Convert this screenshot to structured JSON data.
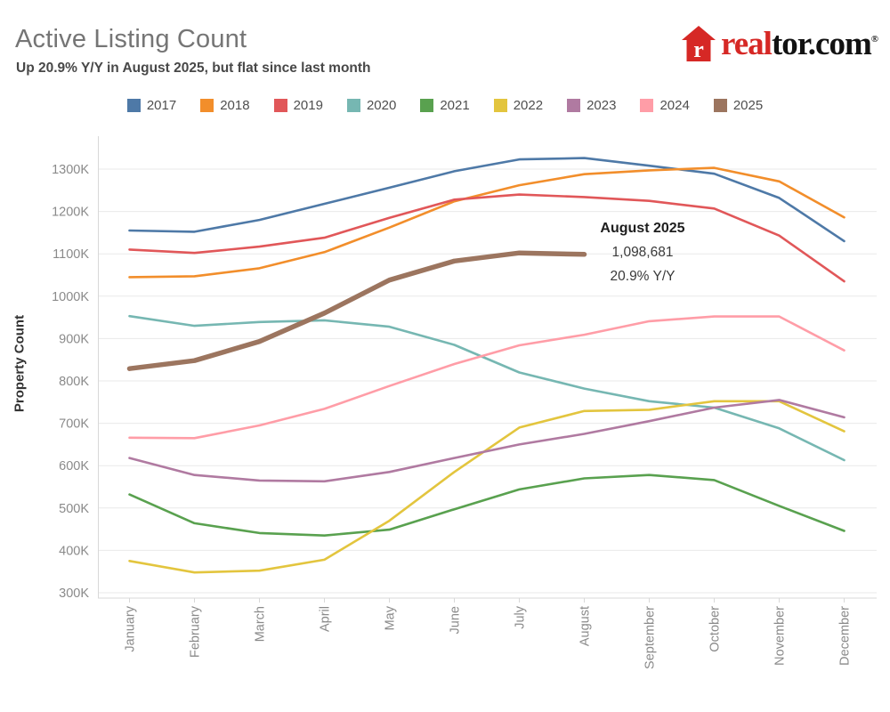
{
  "header": {
    "title": "Active Listing Count",
    "subtitle": "Up 20.9% Y/Y in August 2025, but flat since last month"
  },
  "logo": {
    "brand_red": "real",
    "brand_black": "tor.com",
    "registered": "®",
    "accent_color": "#d62825"
  },
  "chart_data": {
    "type": "line",
    "title": "Active Listing Count",
    "xlabel": "",
    "ylabel": "Property Count",
    "x": [
      "January",
      "February",
      "March",
      "April",
      "May",
      "June",
      "July",
      "August",
      "September",
      "October",
      "November",
      "December"
    ],
    "unit": "K",
    "ylim": [
      300,
      1300
    ],
    "ytick_step": 100,
    "ytick_labels": [
      "300K",
      "400K",
      "500K",
      "600K",
      "700K",
      "800K",
      "900K",
      "1000K",
      "1100K",
      "1200K",
      "1300K"
    ],
    "grid": true,
    "legend_position": "top",
    "series": [
      {
        "name": "2017",
        "color": "#4e79a7",
        "width": 2.6,
        "values": [
          1155,
          1152,
          1180,
          1218,
          1256,
          1295,
          1323,
          1326,
          1308,
          1289,
          1232,
          1130
        ]
      },
      {
        "name": "2018",
        "color": "#f28e2b",
        "width": 2.6,
        "values": [
          1045,
          1047,
          1066,
          1104,
          1162,
          1224,
          1262,
          1288,
          1297,
          1303,
          1271,
          1186
        ]
      },
      {
        "name": "2019",
        "color": "#e15759",
        "width": 2.6,
        "values": [
          1110,
          1102,
          1117,
          1138,
          1185,
          1228,
          1240,
          1234,
          1225,
          1207,
          1143,
          1035
        ]
      },
      {
        "name": "2020",
        "color": "#76b7b2",
        "width": 2.6,
        "values": [
          953,
          930,
          939,
          943,
          928,
          885,
          820,
          782,
          752,
          737,
          688,
          613
        ]
      },
      {
        "name": "2021",
        "color": "#59a14f",
        "width": 2.6,
        "values": [
          532,
          464,
          441,
          435,
          449,
          497,
          544,
          570,
          578,
          566,
          505,
          446
        ]
      },
      {
        "name": "2022",
        "color": "#e3c53e",
        "width": 2.6,
        "values": [
          375,
          348,
          352,
          378,
          470,
          585,
          690,
          729,
          732,
          752,
          752,
          681
        ]
      },
      {
        "name": "2023",
        "color": "#b07aa1",
        "width": 2.6,
        "values": [
          618,
          578,
          565,
          563,
          585,
          618,
          650,
          675,
          705,
          737,
          755,
          714
        ]
      },
      {
        "name": "2024",
        "color": "#ff9da7",
        "width": 2.6,
        "values": [
          666,
          665,
          695,
          734,
          788,
          840,
          884,
          909,
          941,
          952,
          952,
          872
        ]
      },
      {
        "name": "2025",
        "color": "#9c755f",
        "width": 5.5,
        "values": [
          829,
          848,
          893,
          960,
          1038,
          1083,
          1102,
          1098.681
        ]
      }
    ],
    "annotation": {
      "title": "August 2025",
      "value": "1,098,681",
      "change": "20.9% Y/Y"
    }
  }
}
